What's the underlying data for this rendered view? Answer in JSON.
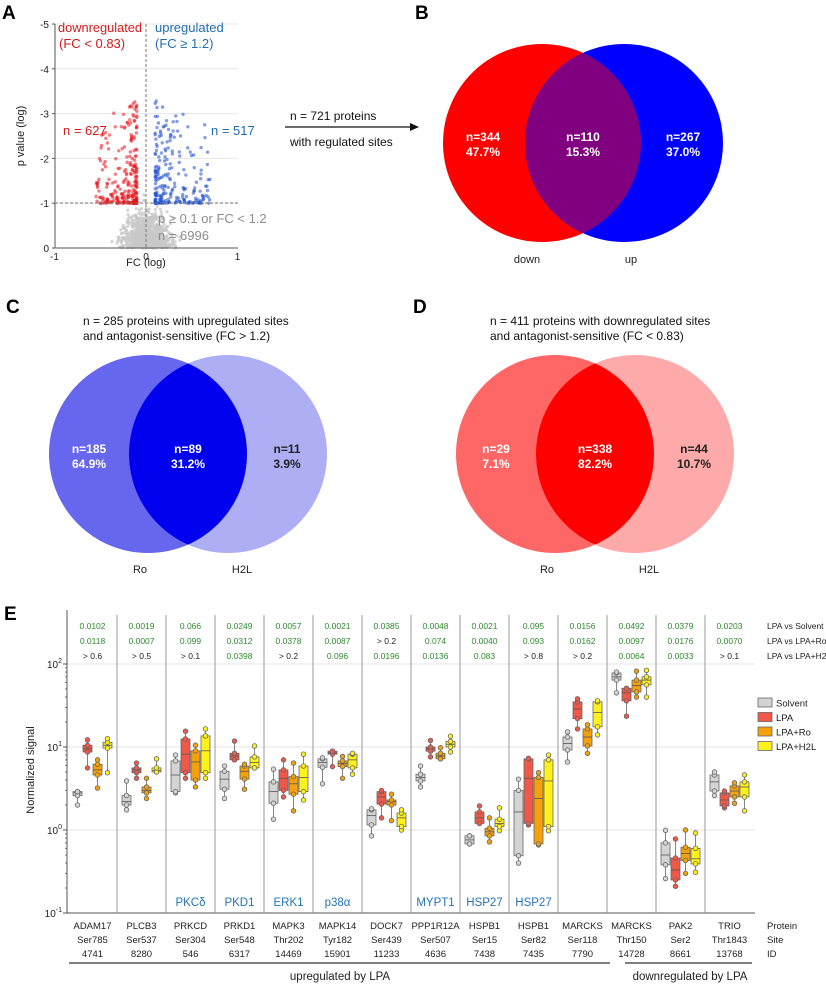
{
  "panel_labels": {
    "a": "A",
    "b": "B",
    "c": "C",
    "d": "D",
    "e": "E"
  },
  "arrow": {
    "line1": "n = 721 proteins",
    "line2": "with regulated sites"
  },
  "chart_data": [
    {
      "type": "scatter",
      "panel": "A",
      "xlabel": "FC (log)",
      "ylabel": "p value (log)",
      "xlim": [
        -1,
        1
      ],
      "ylim": [
        0,
        -5
      ],
      "xticks": [
        "-1",
        "0",
        "1"
      ],
      "yticks": [
        "0",
        "-1",
        "-2",
        "-3",
        "-4",
        "-5"
      ],
      "thresholds": {
        "p_log": -1,
        "fc_log": 0
      },
      "groups": [
        {
          "name": "downregulated",
          "criterion": "(FC < 0.83)",
          "count_label": "n = 627",
          "count": 627,
          "color": "#e8141c"
        },
        {
          "name": "upregulated",
          "criterion": "(FC ≥ 1.2)",
          "count_label": "n = 517",
          "count": 517,
          "color": "#1f4fd0"
        },
        {
          "name": "p ≥ 0.1 or FC < 1.2",
          "count_label": "n = 6996",
          "count": 6996,
          "color": "#c8c8c8"
        }
      ],
      "label_colors": {
        "down": "#d7191c",
        "up": "#1f6cb4",
        "ns": "#8c8c8c"
      }
    },
    {
      "type": "venn",
      "panel": "B",
      "sets": [
        {
          "name": "down",
          "color": "#ff0000"
        },
        {
          "name": "up",
          "color": "#0000ff"
        }
      ],
      "overlap_color": "#80007f",
      "regions": [
        {
          "n": "n=344",
          "pct": "47.7%"
        },
        {
          "n": "n=110",
          "pct": "15.3%"
        },
        {
          "n": "n=267",
          "pct": "37.0%"
        }
      ]
    },
    {
      "type": "venn",
      "panel": "C",
      "title1": "n = 285 proteins with upregulated sites",
      "title2": "and antagonist-sensitive  (FC > 1.2)",
      "sets": [
        {
          "name": "Ro",
          "color": "#6666ee"
        },
        {
          "name": "H2L",
          "color": "#aeaef5"
        }
      ],
      "overlap_color": "#0000ee",
      "regions": [
        {
          "n": "n=185",
          "pct": "64.9%"
        },
        {
          "n": "n=89",
          "pct": "31.2%"
        },
        {
          "n": "n=11",
          "pct": "3.9%"
        }
      ]
    },
    {
      "type": "venn",
      "panel": "D",
      "title1": "n = 411 proteins with downregulated sites",
      "title2": "and antagonist-sensitive  (FC < 0.83)",
      "sets": [
        {
          "name": "Ro",
          "color": "#ff6666"
        },
        {
          "name": "H2L",
          "color": "#ffaaaa"
        }
      ],
      "overlap_color": "#ff0000",
      "regions": [
        {
          "n": "n=29",
          "pct": "7.1%"
        },
        {
          "n": "n=338",
          "pct": "82.2%"
        },
        {
          "n": "n=44",
          "pct": "10.7%"
        }
      ]
    },
    {
      "type": "box",
      "panel": "E",
      "ylabel": "Normalized signal",
      "yscale": "log",
      "ylim": [
        0.1,
        100
      ],
      "yticks": [
        {
          "base": "10",
          "exp": "2",
          "v": 100
        },
        {
          "base": "10",
          "exp": "1",
          "v": 10
        },
        {
          "base": "10",
          "exp": "0",
          "v": 1
        },
        {
          "base": "10",
          "exp": "-1",
          "v": 0.1
        }
      ],
      "grid": true,
      "legend_position": "right",
      "series": [
        {
          "name": "Solvent",
          "color": "#d4d4d4"
        },
        {
          "name": "LPA",
          "color": "#f0584a"
        },
        {
          "name": "LPA+Ro",
          "color": "#f5a10a"
        },
        {
          "name": "LPA+H2L",
          "color": "#fff21a"
        }
      ],
      "pvalue_row_labels": [
        "LPA vs Solvent",
        "LPA vs LPA+Ro",
        "LPA vs LPA+H2L"
      ],
      "pvalue_colors": {
        "significant": "#2e8b2e",
        "ns": "#222222"
      },
      "row_labels": [
        "Protein",
        "Site",
        "ID"
      ],
      "groups_label": [
        {
          "text": "upregulated  by  LPA"
        },
        {
          "text": "downregulated  by  LPA"
        }
      ],
      "kinase_color": "#2474b8",
      "columns": [
        {
          "protein": "ADAM17",
          "site": "Ser785",
          "id": "4741",
          "kinase": "",
          "p": [
            "0.0102",
            "0.0118",
            "> 0.6"
          ],
          "boxes": [
            [
              2.0,
              2.6,
              2.8,
              2.9,
              2.9
            ],
            [
              5.6,
              8.7,
              9.5,
              10.5,
              12.2
            ],
            [
              3.2,
              4.6,
              5.3,
              6.2,
              7.0
            ],
            [
              4.9,
              9.7,
              10.5,
              11.4,
              12.6
            ]
          ]
        },
        {
          "protein": "PLCB3",
          "site": "Ser537",
          "id": "8280",
          "kinase": "",
          "p": [
            "0.0019",
            "0.0007",
            "> 0.5"
          ],
          "boxes": [
            [
              1.75,
              2.0,
              2.2,
              2.6,
              3.9
            ],
            [
              4.2,
              4.9,
              5.3,
              5.6,
              6.4
            ],
            [
              2.4,
              2.8,
              3.0,
              3.3,
              4.2
            ],
            [
              5.0,
              5.0,
              5.2,
              5.6,
              7.2
            ]
          ]
        },
        {
          "protein": "PRKCD",
          "site": "Ser304",
          "id": "546",
          "kinase": "PKCδ",
          "p": [
            "0.066",
            "0.099",
            "> 0.1"
          ],
          "boxes": [
            [
              2.8,
              2.9,
              4.6,
              6.8,
              8.0
            ],
            [
              4.2,
              4.9,
              8.2,
              12.5,
              15.5
            ],
            [
              3.3,
              4.0,
              6.6,
              9.0,
              10.5
            ],
            [
              4.2,
              4.9,
              9.0,
              13.6,
              16.5
            ]
          ]
        },
        {
          "protein": "PRKD1",
          "site": "Ser548",
          "id": "6317",
          "kinase": "PKD1",
          "p": [
            "0.0249",
            "0.0312",
            "0.0398"
          ],
          "boxes": [
            [
              2.4,
              3.1,
              4.1,
              5.1,
              5.9
            ],
            [
              7.0,
              7.0,
              7.8,
              8.4,
              11.8
            ],
            [
              3.1,
              4.1,
              5.1,
              5.9,
              6.2
            ],
            [
              5.6,
              5.6,
              6.5,
              7.6,
              10.3
            ]
          ]
        },
        {
          "protein": "MAPK3",
          "site": "Thr202",
          "id": "14469",
          "kinase": "ERK1",
          "p": [
            "0.0057",
            "0.0378",
            "> 0.2"
          ],
          "boxes": [
            [
              1.35,
              2.1,
              2.9,
              3.8,
              5.4
            ],
            [
              2.5,
              3.0,
              4.2,
              5.3,
              7.0
            ],
            [
              1.7,
              2.7,
              3.6,
              4.4,
              6.4
            ],
            [
              2.3,
              2.9,
              4.3,
              5.9,
              8.2
            ]
          ]
        },
        {
          "protein": "MAPK14",
          "site": "Tyr182",
          "id": "15901",
          "kinase": "p38α",
          "p": [
            "0.0021",
            "0.0087",
            "0.096"
          ],
          "boxes": [
            [
              3.6,
              5.7,
              6.5,
              7.2,
              7.4
            ],
            [
              5.8,
              8.2,
              8.5,
              8.9,
              8.9
            ],
            [
              4.2,
              5.8,
              6.3,
              6.8,
              7.7
            ],
            [
              4.7,
              5.6,
              7.0,
              8.2,
              8.4
            ]
          ]
        },
        {
          "protein": "DOCK7",
          "site": "Ser439",
          "id": "11233",
          "kinase": "",
          "p": [
            "0.0385",
            "> 0.2",
            "0.0196"
          ],
          "boxes": [
            [
              0.85,
              1.15,
              1.5,
              1.75,
              1.8
            ],
            [
              1.4,
              2.05,
              2.5,
              2.9,
              3.0
            ],
            [
              1.3,
              2.0,
              2.2,
              2.3,
              2.7
            ],
            [
              1.0,
              1.1,
              1.4,
              1.6,
              1.75
            ]
          ]
        },
        {
          "protein": "PPP1R12A",
          "site": "Ser507",
          "id": "4636",
          "kinase": "MYPT1",
          "p": [
            "0.0048",
            "0.074",
            "0.0136"
          ],
          "boxes": [
            [
              3.3,
              3.9,
              4.3,
              4.7,
              5.9
            ],
            [
              7.6,
              8.9,
              9.5,
              10.0,
              12.0
            ],
            [
              7.2,
              7.2,
              7.8,
              8.4,
              9.8
            ],
            [
              8.7,
              10.0,
              10.8,
              11.7,
              13.5
            ]
          ]
        },
        {
          "protein": "HSPB1",
          "site": "Ser15",
          "id": "7438",
          "kinase": "HSP27",
          "p": [
            "0.0021",
            "0.0040",
            "0.083"
          ],
          "boxes": [
            [
              0.68,
              0.68,
              0.76,
              0.85,
              0.85
            ],
            [
              1.2,
              1.2,
              1.4,
              1.65,
              1.95
            ],
            [
              0.72,
              0.85,
              0.95,
              1.05,
              1.4
            ],
            [
              0.98,
              1.1,
              1.2,
              1.35,
              1.85
            ]
          ]
        },
        {
          "protein": "HSPB1",
          "site": "Ser82",
          "id": "7435",
          "kinase": "HSP27",
          "p": [
            "0.095",
            "0.093",
            "> 0.8"
          ],
          "boxes": [
            [
              0.4,
              0.49,
              1.65,
              3.0,
              4.1
            ],
            [
              1.15,
              1.2,
              4.2,
              7.2,
              7.3
            ],
            [
              0.66,
              0.68,
              2.4,
              4.3,
              4.9
            ],
            [
              0.98,
              1.1,
              3.9,
              7.0,
              8.0
            ]
          ]
        },
        {
          "protein": "MARCKS",
          "site": "Ser118",
          "id": "7790",
          "kinase": "",
          "p": [
            "0.0156",
            "0.0162",
            "> 0.2"
          ],
          "boxes": [
            [
              6.6,
              9.2,
              11,
              13.2,
              15.2
            ],
            [
              16.5,
              22,
              28.7,
              35,
              38
            ],
            [
              8.4,
              10.3,
              13.2,
              16.5,
              18.5
            ],
            [
              14,
              17.5,
              26,
              35,
              36
            ]
          ]
        },
        {
          "protein": "MARCKS",
          "site": "Thr150",
          "id": "14728",
          "kinase": "",
          "p": [
            "0.0492",
            "0.0097",
            "0.0064"
          ],
          "boxes": [
            [
              45,
              64,
              70,
              78,
              80
            ],
            [
              23.5,
              36,
              45,
              51,
              51
            ],
            [
              40,
              46,
              55,
              64,
              82
            ],
            [
              40,
              56,
              64,
              70,
              84
            ]
          ]
        },
        {
          "protein": "PAK2",
          "site": "Ser2",
          "id": "8661",
          "kinase": "",
          "p": [
            "0.0379",
            "0.0176",
            "0.0033"
          ],
          "boxes": [
            [
              0.26,
              0.38,
              0.5,
              0.7,
              0.99
            ],
            [
              0.21,
              0.25,
              0.33,
              0.46,
              0.78
            ],
            [
              0.3,
              0.43,
              0.52,
              0.62,
              1.0
            ],
            [
              0.31,
              0.39,
              0.45,
              0.6,
              0.92
            ]
          ]
        },
        {
          "protein": "TRIO",
          "site": "Thr1843",
          "id": "13768",
          "kinase": "",
          "p": [
            "0.0203",
            "0.0070",
            "> 0.1"
          ],
          "boxes": [
            [
              2.6,
              2.95,
              3.8,
              4.6,
              5.0
            ],
            [
              1.85,
              1.95,
              2.3,
              2.8,
              2.95
            ],
            [
              2.1,
              2.5,
              2.95,
              3.4,
              3.7
            ],
            [
              1.7,
              2.5,
              3.3,
              3.8,
              4.6
            ]
          ]
        }
      ]
    }
  ]
}
